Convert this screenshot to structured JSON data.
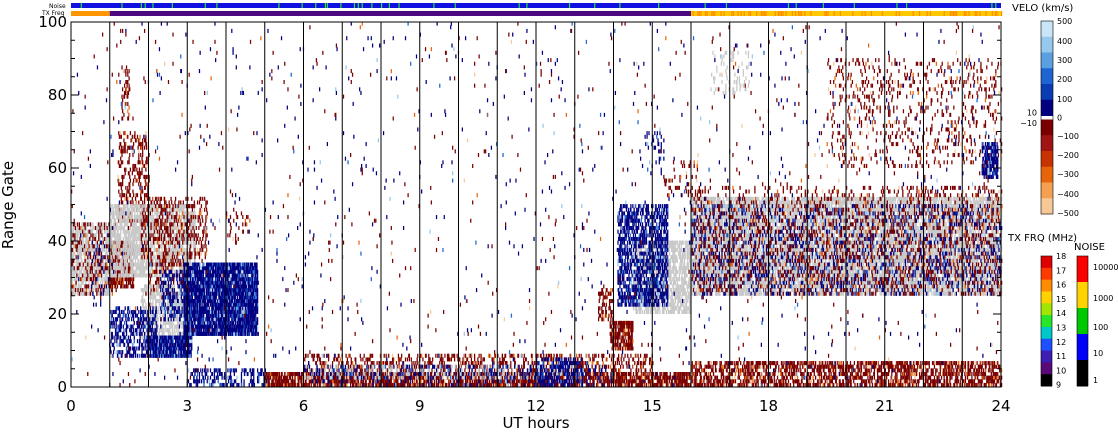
{
  "chart_data": {
    "type": "heatmap",
    "title": "",
    "xlabel": "UT hours",
    "ylabel": "Range Gate",
    "xlim": [
      0,
      24
    ],
    "ylim": [
      0,
      100
    ],
    "x_ticks": [
      0,
      3,
      6,
      9,
      12,
      15,
      18,
      21,
      24
    ],
    "y_ticks": [
      0,
      20,
      40,
      60,
      80,
      100
    ],
    "vertical_gridlines_hours": [
      1,
      2,
      3,
      4,
      5,
      6,
      7,
      8,
      9,
      10,
      11,
      12,
      13,
      14,
      15,
      16,
      17,
      18,
      19,
      20,
      21,
      22,
      23
    ],
    "ground_scatter_color": "#c8c8c8",
    "colors": {
      "strong_neg": "#7a0000",
      "strong_pos": "#000080",
      "mid_pos": "#1e64d2",
      "light_pos": "#96c8ee",
      "mid_neg": "#e8640a",
      "light_neg": "#f5c896"
    },
    "regions": [
      {
        "kind": "gs",
        "x0": 0.0,
        "x1": 1.0,
        "y0": 25,
        "y1": 45,
        "density": 0.55
      },
      {
        "kind": "neg",
        "x0": 0.0,
        "x1": 1.2,
        "y0": 25,
        "y1": 45,
        "density": 0.15
      },
      {
        "kind": "pos",
        "x0": 0.5,
        "x1": 1.0,
        "y0": 22,
        "y1": 40,
        "density": 0.08
      },
      {
        "kind": "neg",
        "x0": 1.0,
        "x1": 1.6,
        "y0": 27,
        "y1": 40,
        "density": 0.55
      },
      {
        "kind": "neg",
        "x0": 1.2,
        "x1": 2.0,
        "y0": 45,
        "y1": 70,
        "density": 0.25
      },
      {
        "kind": "neg",
        "x0": 1.3,
        "x1": 1.5,
        "y0": 73,
        "y1": 88,
        "density": 0.2
      },
      {
        "kind": "gs",
        "x0": 1.0,
        "x1": 3.2,
        "y0": 30,
        "y1": 50,
        "density": 0.5
      },
      {
        "kind": "neg",
        "x0": 1.8,
        "x1": 3.5,
        "y0": 35,
        "y1": 52,
        "density": 0.2
      },
      {
        "kind": "neg",
        "x0": 2.0,
        "x1": 3.0,
        "y0": 25,
        "y1": 35,
        "density": 0.25
      },
      {
        "kind": "gs",
        "x0": 1.8,
        "x1": 3.0,
        "y0": 13,
        "y1": 28,
        "density": 0.4
      },
      {
        "kind": "pos",
        "x0": 1.0,
        "x1": 2.2,
        "y0": 8,
        "y1": 22,
        "density": 0.35
      },
      {
        "kind": "pos",
        "x0": 1.9,
        "x1": 3.1,
        "y0": 8,
        "y1": 14,
        "density": 0.7
      },
      {
        "kind": "pos",
        "x0": 2.9,
        "x1": 4.8,
        "y0": 14,
        "y1": 34,
        "density": 0.8
      },
      {
        "kind": "pos",
        "x0": 2.3,
        "x1": 3.0,
        "y0": 18,
        "y1": 32,
        "density": 0.3
      },
      {
        "kind": "neg",
        "x0": 4.0,
        "x1": 4.6,
        "y0": 40,
        "y1": 48,
        "density": 0.1
      },
      {
        "kind": "neg",
        "x0": 5.0,
        "x1": 16.0,
        "y0": 0,
        "y1": 4,
        "density": 0.6
      },
      {
        "kind": "neg",
        "x0": 6.0,
        "x1": 15.0,
        "y0": 4,
        "y1": 9,
        "density": 0.25
      },
      {
        "kind": "gs",
        "x0": 6.0,
        "x1": 13.0,
        "y0": 2,
        "y1": 6,
        "density": 0.18
      },
      {
        "kind": "pos",
        "x0": 3.0,
        "x1": 5.0,
        "y0": 0,
        "y1": 5,
        "density": 0.3
      },
      {
        "kind": "pos",
        "x0": 6.0,
        "x1": 14.0,
        "y0": 0,
        "y1": 6,
        "density": 0.1
      },
      {
        "kind": "pos",
        "x0": 12.0,
        "x1": 13.2,
        "y0": 0,
        "y1": 8,
        "density": 0.35
      },
      {
        "kind": "neg",
        "x0": 16.0,
        "x1": 24.0,
        "y0": 0,
        "y1": 7,
        "density": 0.45
      },
      {
        "kind": "neg",
        "x0": 13.9,
        "x1": 14.5,
        "y0": 10,
        "y1": 18,
        "density": 0.7
      },
      {
        "kind": "neg",
        "x0": 13.6,
        "x1": 14.0,
        "y0": 18,
        "y1": 27,
        "density": 0.4
      },
      {
        "kind": "gs",
        "x0": 14.5,
        "x1": 16.0,
        "y0": 20,
        "y1": 40,
        "density": 0.5
      },
      {
        "kind": "pos",
        "x0": 14.1,
        "x1": 15.4,
        "y0": 22,
        "y1": 50,
        "density": 0.45
      },
      {
        "kind": "pos",
        "x0": 14.8,
        "x1": 15.3,
        "y0": 58,
        "y1": 70,
        "density": 0.1
      },
      {
        "kind": "neg",
        "x0": 15.3,
        "x1": 16.2,
        "y0": 52,
        "y1": 62,
        "density": 0.12
      },
      {
        "kind": "gs",
        "x0": 16.0,
        "x1": 24.0,
        "y0": 25,
        "y1": 52,
        "density": 0.6
      },
      {
        "kind": "pos",
        "x0": 16.0,
        "x1": 24.0,
        "y0": 25,
        "y1": 50,
        "density": 0.12
      },
      {
        "kind": "neg",
        "x0": 16.0,
        "x1": 24.0,
        "y0": 25,
        "y1": 55,
        "density": 0.12
      },
      {
        "kind": "neg",
        "x0": 19.5,
        "x1": 24.0,
        "y0": 60,
        "y1": 90,
        "density": 0.08
      },
      {
        "kind": "pos",
        "x0": 23.5,
        "x1": 23.9,
        "y0": 57,
        "y1": 67,
        "density": 0.6
      },
      {
        "kind": "gs",
        "x0": 16.5,
        "x1": 17.5,
        "y0": 80,
        "y1": 92,
        "density": 0.1
      },
      {
        "kind": "pos",
        "x0": 0.0,
        "x1": 24.0,
        "y0": 0,
        "y1": 100,
        "density": 0.006
      },
      {
        "kind": "neg",
        "x0": 0.0,
        "x1": 24.0,
        "y0": 0,
        "y1": 100,
        "density": 0.005
      }
    ],
    "velocity_colorbar": {
      "title": "VELO (km/s)",
      "labels_positive": [
        "500",
        "400",
        "300",
        "200",
        "100",
        "10",
        "0"
      ],
      "labels_negative": [
        "−10",
        "−100",
        "−200",
        "−300",
        "−400",
        "−500"
      ],
      "colors_positive": [
        "#c8e6f8",
        "#96c8ee",
        "#5aa0e0",
        "#1e64d2",
        "#0a3cb4",
        "#000080"
      ],
      "colors_negative": [
        "#7a0000",
        "#a01414",
        "#c83200",
        "#e8640a",
        "#f5a050",
        "#f5c896"
      ]
    },
    "freq_colorbar": {
      "title": "TX FRQ (MHz)",
      "labels": [
        "18",
        "17",
        "16",
        "15",
        "14",
        "13",
        "12",
        "11",
        "10",
        "9"
      ],
      "colors": [
        "#e00000",
        "#ff3a00",
        "#ff8c00",
        "#ffd200",
        "#a0e600",
        "#28e628",
        "#00c8c8",
        "#1e50ff",
        "#3c1eb4",
        "#5a0a78",
        "#000000"
      ]
    },
    "noise_colorbar": {
      "title": "NOISE",
      "labels": [
        "10000",
        "1000",
        "100",
        "10",
        "1"
      ],
      "colors": [
        "#ff0000",
        "#ffd200",
        "#00c800",
        "#0000ff",
        "#000000"
      ]
    },
    "strips": {
      "noise_label": "Noise",
      "freq_label": "TX Freq",
      "noise_base_color": "#1010e0",
      "noise_spike_color": "#28e628",
      "freq_segments": [
        {
          "x0": 0.0,
          "x1": 1.0,
          "color": "#ff9600"
        },
        {
          "x0": 1.0,
          "x1": 16.0,
          "color": "#4b0a82"
        },
        {
          "x0": 16.0,
          "x1": 24.0,
          "color": "#ffc800"
        }
      ]
    }
  }
}
